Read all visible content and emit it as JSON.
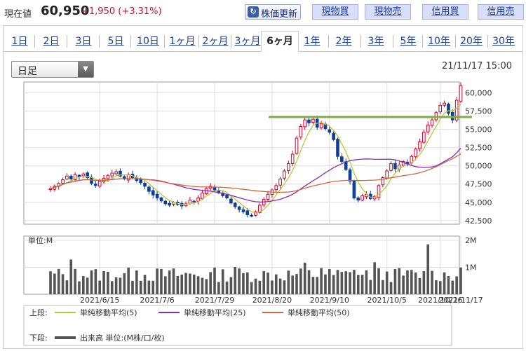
{
  "header": {
    "price_label": "現在値",
    "price_value": "60,950",
    "price_change": "+1,950 (+3.31%)",
    "refresh_label": "株価更新",
    "buttons": [
      "現物買",
      "現物売",
      "信用買",
      "信用売"
    ]
  },
  "tabs": {
    "items": [
      "1日",
      "2日",
      "3日",
      "5日",
      "10日",
      "1ヶ月",
      "2ヶ月",
      "3ヶ月",
      "6ヶ月",
      "1年",
      "2年",
      "3年",
      "5年",
      "10年",
      "20年",
      "30年"
    ],
    "active": "6ヶ月"
  },
  "controls": {
    "period_select": "日足",
    "timestamp": "21/11/17 15:00"
  },
  "chart_data": {
    "type": "candlestick",
    "price_ticks": [
      "60,000",
      "57,500",
      "55,000",
      "52,500",
      "50,000",
      "47,500",
      "45,000",
      "42,500"
    ],
    "ylim": [
      42000,
      61500
    ],
    "x_ticks": [
      "2021/6/15",
      "2021/7/6",
      "2021/7/29",
      "2021/8/20",
      "2021/9/10",
      "2021/10/5",
      "2021/10/26",
      "2021/11/17"
    ],
    "resistance_line": 56700,
    "closes": [
      46900,
      47200,
      47600,
      48100,
      48600,
      48200,
      48800,
      48500,
      48900,
      48400,
      47600,
      47300,
      47900,
      48300,
      48700,
      49000,
      49200,
      48600,
      48200,
      48800,
      48400,
      48000,
      47700,
      47200,
      46500,
      46000,
      45600,
      45200,
      44800,
      44600,
      45000,
      44700,
      44500,
      44800,
      45300,
      45100,
      45600,
      46300,
      46900,
      47200,
      46700,
      46300,
      45900,
      45600,
      44900,
      44400,
      44000,
      43700,
      43300,
      43100,
      43700,
      44600,
      45400,
      46100,
      46700,
      47300,
      48200,
      49300,
      50300,
      51600,
      53800,
      55400,
      56300,
      55900,
      56400,
      55300,
      55800,
      55100,
      54600,
      53600,
      51300,
      50600,
      49500,
      47900,
      45600,
      45300,
      45900,
      46100,
      45500,
      45800,
      47300,
      48400,
      49300,
      50300,
      49600,
      50100,
      50600,
      50300,
      51300,
      52300,
      53300,
      54600,
      55600,
      56300,
      57300,
      58300,
      58600,
      57200,
      56300,
      59000,
      61000
    ],
    "ma_legend": {
      "upper_label": "上段:",
      "ma5": "単純移動平均(5)",
      "ma25": "単純移動平均(25)",
      "ma50": "単純移動平均(50)",
      "lower_label": "下段:",
      "volume": "出来高 単位:(M株/口/枚)"
    },
    "volume_unit_label": "単位:M",
    "volume_ticks": [
      "2M",
      "1M"
    ],
    "volume_max_m": 2,
    "colors": {
      "up": "#d8002a",
      "down": "#0f3f9a",
      "ma5": "#b5c93a",
      "ma25": "#8a2ab8",
      "ma50": "#d4683a",
      "resistance": "#7ab040",
      "volume": "#555555"
    }
  }
}
